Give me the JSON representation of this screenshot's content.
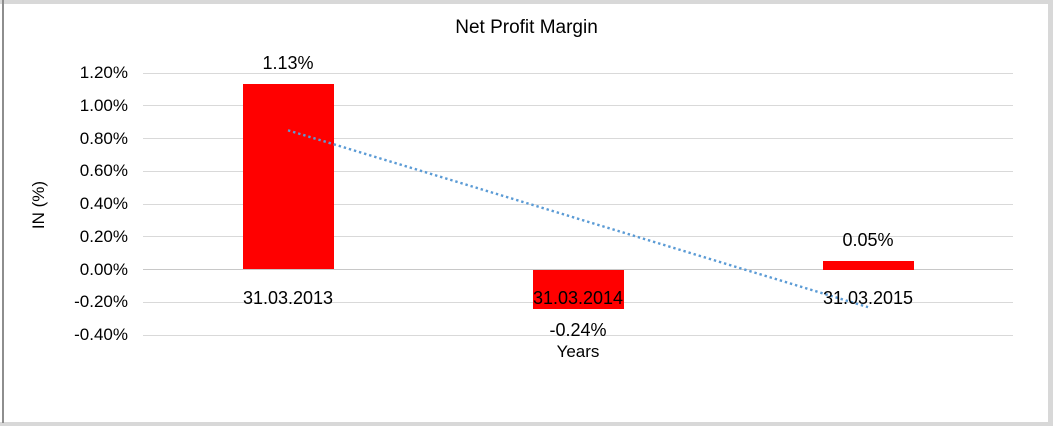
{
  "window": {
    "background": "#ffffff",
    "frame_color": "#d8d8d8",
    "left_edge_color": "#8e8e8e"
  },
  "chart_data": {
    "type": "bar",
    "title": "Net Profit Margin",
    "ylabel": "IN (%)",
    "xlabel": "Years",
    "categories": [
      "31.03.2013",
      "31.03.2014",
      "31.03.2015"
    ],
    "values": [
      1.13,
      -0.24,
      0.05
    ],
    "data_labels": [
      "1.13%",
      "-0.24%",
      "0.05%"
    ],
    "yticks": [
      "1.20%",
      "1.00%",
      "0.80%",
      "0.60%",
      "0.40%",
      "0.20%",
      "0.00%",
      "-0.20%",
      "-0.40%"
    ],
    "ytick_values": [
      1.2,
      1.0,
      0.8,
      0.6,
      0.4,
      0.2,
      0.0,
      -0.2,
      -0.4
    ],
    "ylim": [
      -0.4,
      1.2
    ],
    "grid": true,
    "legend": "none",
    "bar_color": "#ff0000",
    "gridline_color": "#d9d9d9",
    "axis_line_color": "#c8c8c8",
    "text_color": "#000000",
    "trendline": {
      "type": "linear",
      "style": "dotted",
      "color": "#5b9bd5",
      "start_value": 0.85,
      "end_value": -0.23
    }
  }
}
